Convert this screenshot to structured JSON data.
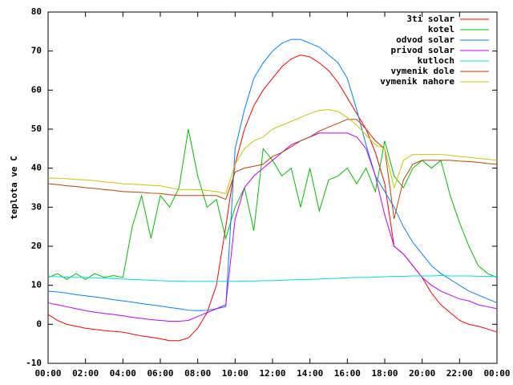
{
  "chart_data": {
    "type": "line",
    "ylabel": "teplota ve C",
    "x": [
      0,
      0.5,
      1,
      1.5,
      2,
      2.5,
      3,
      3.5,
      4,
      4.5,
      5,
      5.5,
      6,
      6.5,
      7,
      7.5,
      8,
      8.5,
      9,
      9.5,
      10,
      10.5,
      11,
      11.5,
      12,
      12.5,
      13,
      13.5,
      14,
      14.5,
      15,
      15.5,
      16,
      16.5,
      17,
      17.5,
      18,
      18.5,
      19,
      19.5,
      20,
      20.5,
      21,
      21.5,
      22,
      22.5,
      23,
      23.5,
      24
    ],
    "xlim": [
      0,
      24
    ],
    "xticks": [
      {
        "value": 0,
        "label": "00:00"
      },
      {
        "value": 2,
        "label": "02:00"
      },
      {
        "value": 4,
        "label": "04:00"
      },
      {
        "value": 6,
        "label": "06:00"
      },
      {
        "value": 8,
        "label": "08:00"
      },
      {
        "value": 10,
        "label": "10:00"
      },
      {
        "value": 12,
        "label": "12:00"
      },
      {
        "value": 14,
        "label": "14:00"
      },
      {
        "value": 16,
        "label": "16:00"
      },
      {
        "value": 18,
        "label": "18:00"
      },
      {
        "value": 20,
        "label": "20:00"
      },
      {
        "value": 22,
        "label": "22:00"
      },
      {
        "value": 24,
        "label": "00:00"
      }
    ],
    "ylim": [
      -10,
      80
    ],
    "yticks": [
      -10,
      0,
      10,
      20,
      30,
      40,
      50,
      60,
      70,
      80
    ],
    "grid": false,
    "legend": "top-right",
    "series": [
      {
        "name": "3ti solar",
        "color": "#ff0000",
        "values": [
          2.5,
          1,
          0,
          -0.5,
          -1,
          -1.3,
          -1.6,
          -1.8,
          -2,
          -2.5,
          -3,
          -3.3,
          -3.7,
          -4.2,
          -4.2,
          -3.5,
          -1,
          3,
          10,
          25,
          41,
          50,
          56,
          60,
          63,
          66,
          68,
          69,
          68.5,
          67,
          65,
          62,
          58,
          54,
          50,
          44,
          36,
          20,
          18,
          15,
          12,
          8,
          5,
          3,
          1,
          0,
          -0.5,
          -1.2,
          -2
        ]
      },
      {
        "name": "kotel",
        "color": "#00c000",
        "values": [
          12,
          13,
          11.5,
          13,
          11.5,
          13,
          12,
          12.5,
          12,
          25,
          33,
          22,
          33,
          30,
          35,
          50,
          38,
          30,
          32,
          22,
          30,
          35,
          24,
          45,
          42,
          38,
          40,
          30,
          40,
          29,
          37,
          38,
          40,
          36,
          40,
          34,
          47,
          38,
          35,
          40,
          42,
          40,
          42,
          33,
          26,
          20,
          15,
          13,
          12
        ]
      },
      {
        "name": "odvod solar",
        "color": "#0080ff",
        "values": [
          8.5,
          8.3,
          8,
          7.6,
          7.3,
          7,
          6.7,
          6.3,
          6,
          5.7,
          5.3,
          5,
          4.7,
          4.3,
          4,
          3.6,
          3.5,
          3.6,
          4,
          4.5,
          45,
          55,
          63,
          67,
          70,
          72,
          73,
          73,
          72,
          71,
          69,
          67,
          63,
          55,
          46,
          38,
          34,
          30,
          25,
          21,
          18,
          15,
          13,
          11.5,
          10,
          8.5,
          7.5,
          6.5,
          5.5
        ]
      },
      {
        "name": "privod solar",
        "color": "#c000ff",
        "values": [
          5.5,
          5,
          4.5,
          4,
          3.5,
          3.1,
          2.8,
          2.5,
          2.2,
          1.8,
          1.5,
          1.2,
          1,
          0.8,
          0.8,
          1,
          2,
          3,
          4,
          5,
          27,
          35,
          38,
          40,
          42,
          44,
          46,
          47,
          48,
          49,
          49,
          49,
          49,
          48,
          45,
          38,
          28,
          20,
          18,
          15,
          12,
          10,
          8.5,
          7.5,
          6.5,
          6,
          5,
          4.5,
          4
        ]
      },
      {
        "name": "kutloch",
        "color": "#00e0e0",
        "values": [
          12.3,
          12.2,
          12.1,
          12,
          12,
          11.9,
          11.8,
          11.7,
          11.6,
          11.5,
          11.4,
          11.3,
          11.2,
          11.1,
          11.1,
          11,
          11,
          11,
          11,
          11,
          11,
          11.1,
          11.1,
          11.2,
          11.2,
          11.3,
          11.4,
          11.5,
          11.5,
          11.6,
          11.7,
          11.8,
          11.9,
          12,
          12,
          12.1,
          12.2,
          12.3,
          12.3,
          12.4,
          12.4,
          12.4,
          12.5,
          12.4,
          12.4,
          12.4,
          12.3,
          12.3,
          12.3
        ]
      },
      {
        "name": "vymenik dole",
        "color": "#c04000",
        "values": [
          36,
          35.8,
          35.5,
          35.3,
          35,
          34.8,
          34.5,
          34.3,
          34,
          33.9,
          33.8,
          33.6,
          33.5,
          33.2,
          33,
          33,
          33,
          33,
          33,
          32,
          39,
          40,
          40.5,
          41,
          43,
          44,
          45.5,
          47,
          48,
          49.5,
          50.5,
          51.5,
          52.5,
          52.5,
          50,
          47,
          45,
          27,
          37,
          41,
          42,
          42,
          42,
          42,
          41.8,
          41.7,
          41.5,
          41.2,
          41
        ]
      },
      {
        "name": "vymenik nahore",
        "color": "#c8c800",
        "values": [
          37.5,
          37.4,
          37.3,
          37.1,
          37,
          36.8,
          36.5,
          36.3,
          36,
          35.9,
          35.8,
          35.6,
          35.5,
          35,
          34.5,
          34.5,
          34.5,
          34.3,
          34,
          33.5,
          41,
          45,
          47,
          48,
          50,
          51,
          52,
          53,
          54,
          54.8,
          55,
          54.5,
          53,
          51,
          48.5,
          46,
          45,
          35,
          42,
          43.5,
          43.5,
          43.5,
          43.5,
          43.3,
          43,
          42.8,
          42.5,
          42.3,
          42
        ]
      }
    ]
  }
}
